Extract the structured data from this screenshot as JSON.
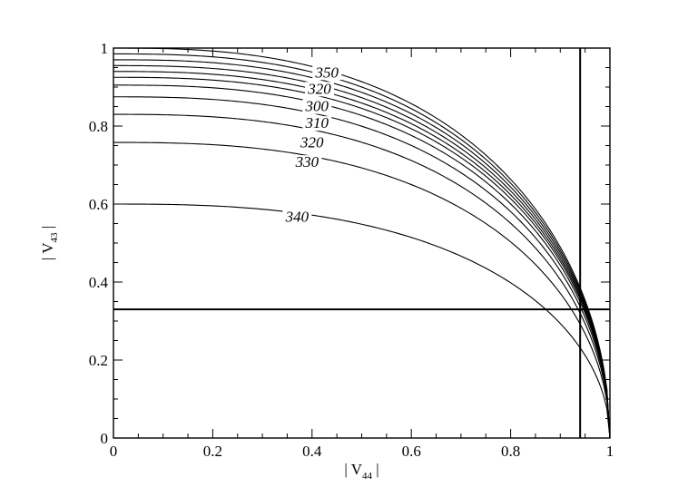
{
  "chart_data": {
    "type": "line",
    "title": "",
    "xlabel": "| V44 |",
    "ylabel": "| V43 |",
    "axis_label_parts": {
      "x": {
        "prefix": "| V",
        "sub": "44",
        "suffix": " |"
      },
      "y": {
        "prefix": "| V",
        "sub": "43",
        "suffix": " |"
      }
    },
    "xlim": [
      0,
      1
    ],
    "ylim": [
      0,
      1
    ],
    "grid": false,
    "x_major_ticks": [
      0,
      0.2,
      0.4,
      0.6,
      0.8,
      1
    ],
    "x_tick_labels": [
      "0",
      "0.2",
      "0.4",
      "0.6",
      "0.8",
      "1"
    ],
    "y_major_ticks": [
      0,
      0.2,
      0.4,
      0.6,
      0.8,
      1
    ],
    "y_tick_labels": [
      "0",
      "0.2",
      "0.4",
      "0.6",
      "0.8",
      "1"
    ],
    "minor_tick_step": 0.05,
    "series_intercepts_y_at_x0": [
      1.0,
      0.985,
      0.97,
      0.955,
      0.94,
      0.925,
      0.905,
      0.875,
      0.83,
      0.758,
      0.6
    ],
    "curve_labels": [
      {
        "text": "350",
        "x": 0.43,
        "y": 0.925
      },
      {
        "text": "320",
        "x": 0.415,
        "y": 0.883
      },
      {
        "text": "300",
        "x": 0.41,
        "y": 0.838
      },
      {
        "text": "310",
        "x": 0.41,
        "y": 0.795
      },
      {
        "text": "320",
        "x": 0.4,
        "y": 0.745
      },
      {
        "text": "330",
        "x": 0.39,
        "y": 0.695
      },
      {
        "text": "340",
        "x": 0.37,
        "y": 0.555
      }
    ],
    "reference_lines": [
      {
        "orientation": "horizontal",
        "value": 0.33
      },
      {
        "orientation": "vertical",
        "value": 0.94
      }
    ],
    "color": "#000000"
  }
}
